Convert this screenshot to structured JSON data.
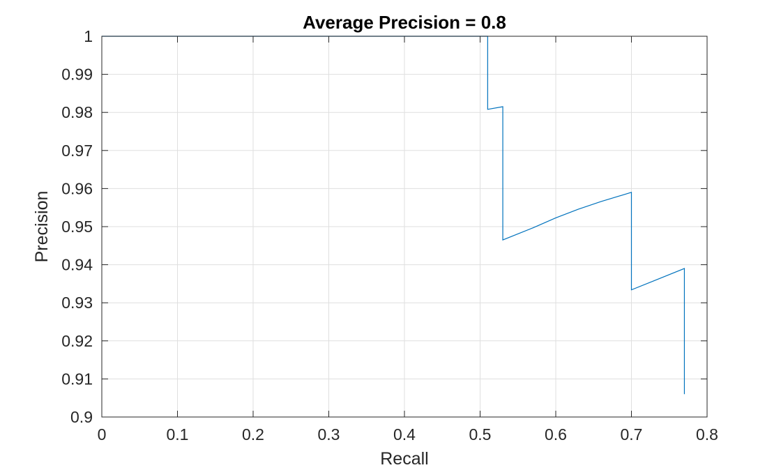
{
  "chart_data": {
    "type": "line",
    "title": "Average Precision = 0.8",
    "xlabel": "Recall",
    "ylabel": "Precision",
    "xlim": [
      0,
      0.8
    ],
    "ylim": [
      0.9,
      1.0
    ],
    "xticks": [
      "0",
      "0.1",
      "0.2",
      "0.3",
      "0.4",
      "0.5",
      "0.6",
      "0.7",
      "0.8"
    ],
    "yticks": [
      "0.9",
      "0.91",
      "0.92",
      "0.93",
      "0.94",
      "0.95",
      "0.96",
      "0.97",
      "0.98",
      "0.99",
      "1"
    ],
    "grid": true,
    "series": [
      {
        "color": "#0072BD",
        "x": [
          0,
          0.51,
          0.51,
          0.53,
          0.53,
          0.57,
          0.6,
          0.63,
          0.66,
          0.7,
          0.7,
          0.73,
          0.77,
          0.77
        ],
        "y": [
          1.0,
          1.0,
          0.9808,
          0.9815,
          0.9465,
          0.9497,
          0.9523,
          0.9546,
          0.9566,
          0.959,
          0.9334,
          0.9358,
          0.939,
          0.906
        ]
      }
    ]
  }
}
